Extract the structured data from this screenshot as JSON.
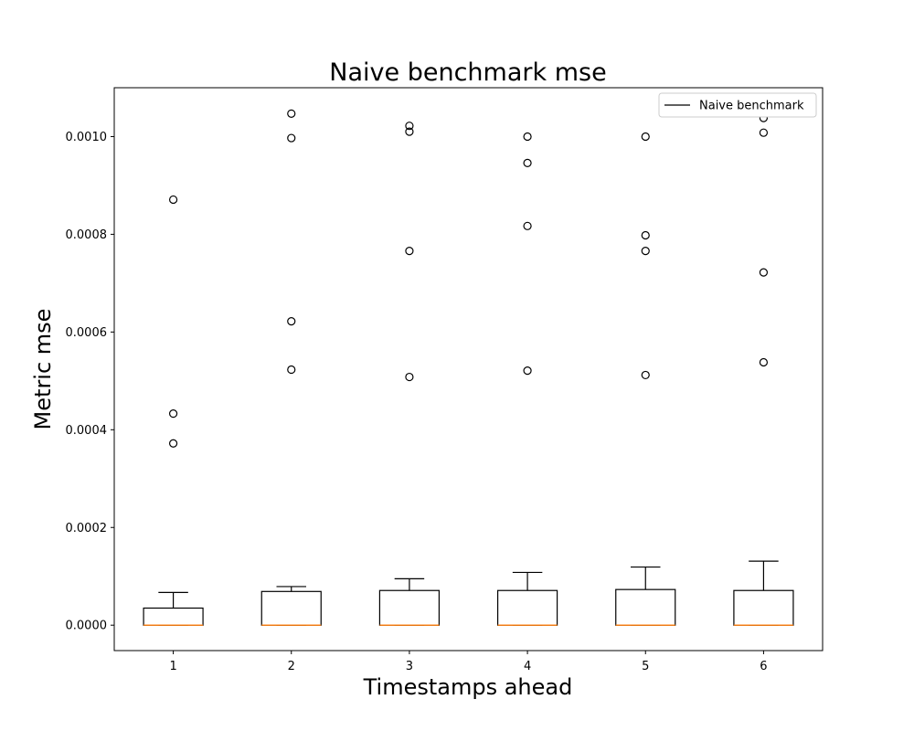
{
  "chart_data": {
    "type": "boxplot",
    "title": "Naive benchmark mse",
    "xlabel": "Timestamps ahead",
    "ylabel": "Metric mse",
    "categories": [
      "1",
      "2",
      "3",
      "4",
      "5",
      "6"
    ],
    "xlim": [
      0.5,
      6.5
    ],
    "ylim": [
      -5.2e-05,
      0.0011
    ],
    "yticks": [
      0.0,
      0.0002,
      0.0004,
      0.0006,
      0.0008,
      0.001
    ],
    "ytick_labels": [
      "0.0000",
      "0.0002",
      "0.0004",
      "0.0006",
      "0.0008",
      "0.0010"
    ],
    "grid": false,
    "legend": {
      "entries": [
        "Naive benchmark"
      ],
      "placement": "top-right"
    },
    "colors": {
      "box": "#000000",
      "median": "#ff7f0e",
      "flier": "#000000"
    },
    "series": [
      {
        "name": "Naive benchmark",
        "boxes": [
          {
            "x": "1",
            "whislo": 0.0,
            "q1": 0.0,
            "median": 0.0,
            "q3": 3.5e-05,
            "whishi": 6.7e-05,
            "fliers": [
              0.000871,
              0.000433,
              0.000372
            ]
          },
          {
            "x": "2",
            "whislo": 0.0,
            "q1": 0.0,
            "median": 0.0,
            "q3": 6.9e-05,
            "whishi": 7.9e-05,
            "fliers": [
              0.001047,
              0.000997,
              0.000622,
              0.000523
            ]
          },
          {
            "x": "3",
            "whislo": 0.0,
            "q1": 0.0,
            "median": 0.0,
            "q3": 7.1e-05,
            "whishi": 9.5e-05,
            "fliers": [
              0.001022,
              0.00101,
              0.000766,
              0.000508
            ]
          },
          {
            "x": "4",
            "whislo": 0.0,
            "q1": 0.0,
            "median": 0.0,
            "q3": 7.1e-05,
            "whishi": 0.000108,
            "fliers": [
              0.001,
              0.000946,
              0.000817,
              0.000521
            ]
          },
          {
            "x": "5",
            "whislo": 0.0,
            "q1": 0.0,
            "median": 0.0,
            "q3": 7.3e-05,
            "whishi": 0.000119,
            "fliers": [
              0.001,
              0.000798,
              0.000766,
              0.000512
            ]
          },
          {
            "x": "6",
            "whislo": 0.0,
            "q1": 0.0,
            "median": 0.0,
            "q3": 7.1e-05,
            "whishi": 0.000131,
            "fliers": [
              0.001038,
              0.001008,
              0.000722,
              0.000538
            ]
          }
        ]
      }
    ]
  }
}
